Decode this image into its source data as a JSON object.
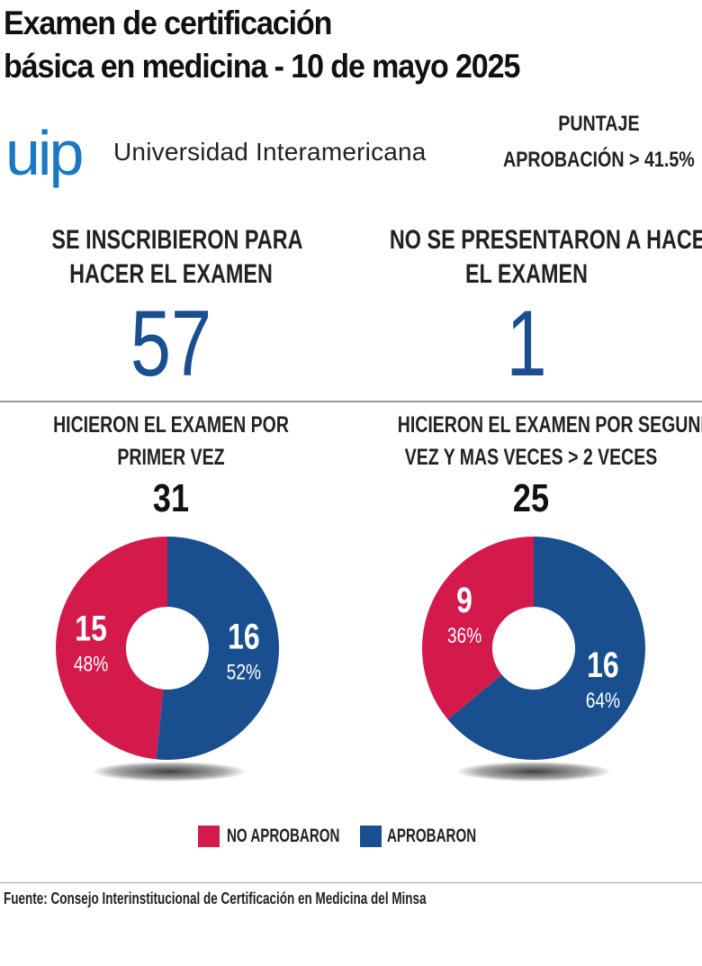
{
  "title": {
    "line1": "Examen de certificación",
    "line2": "básica en medicina - 10 de mayo 2025"
  },
  "logo": {
    "mark": "uip",
    "name": "Universidad Interamericana"
  },
  "threshold": {
    "line1": "PUNTAJE",
    "line2": "APROBACIÓN > 41.5%"
  },
  "stats": {
    "enrolled": {
      "label1": "SE INSCRIBIERON PARA",
      "label2": "HACER EL EXAMEN",
      "value": "57"
    },
    "absent": {
      "label1": "NO SE PRESENTARON A HACER",
      "label2": "EL EXAMEN",
      "value": "1"
    }
  },
  "colors": {
    "no_aprobaron": "#d41a4b",
    "aprobaron": "#1a4f8f"
  },
  "legend": {
    "no_aprobaron": "NO APROBARON",
    "aprobaron": "APROBARON"
  },
  "chart_data": [
    {
      "type": "pie",
      "title_line1": "HICIERON  EL EXAMEN POR",
      "title_line2": "PRIMER VEZ",
      "total": "31",
      "slices": [
        {
          "name": "NO APROBARON",
          "value": 15,
          "percent": "48%"
        },
        {
          "name": "APROBARON",
          "value": 16,
          "percent": "52%"
        }
      ]
    },
    {
      "type": "pie",
      "title_line1": "HICIERON EL EXAMEN POR SEGUNDA",
      "title_line2": "VEZ Y MAS VECES > 2 VECES",
      "total": "25",
      "slices": [
        {
          "name": "NO APROBARON",
          "value": 9,
          "percent": "36%"
        },
        {
          "name": "APROBARON",
          "value": 16,
          "percent": "64%"
        }
      ]
    }
  ],
  "source": "Fuente: Consejo Interinstitucional de Certificación en Medicina del Minsa"
}
